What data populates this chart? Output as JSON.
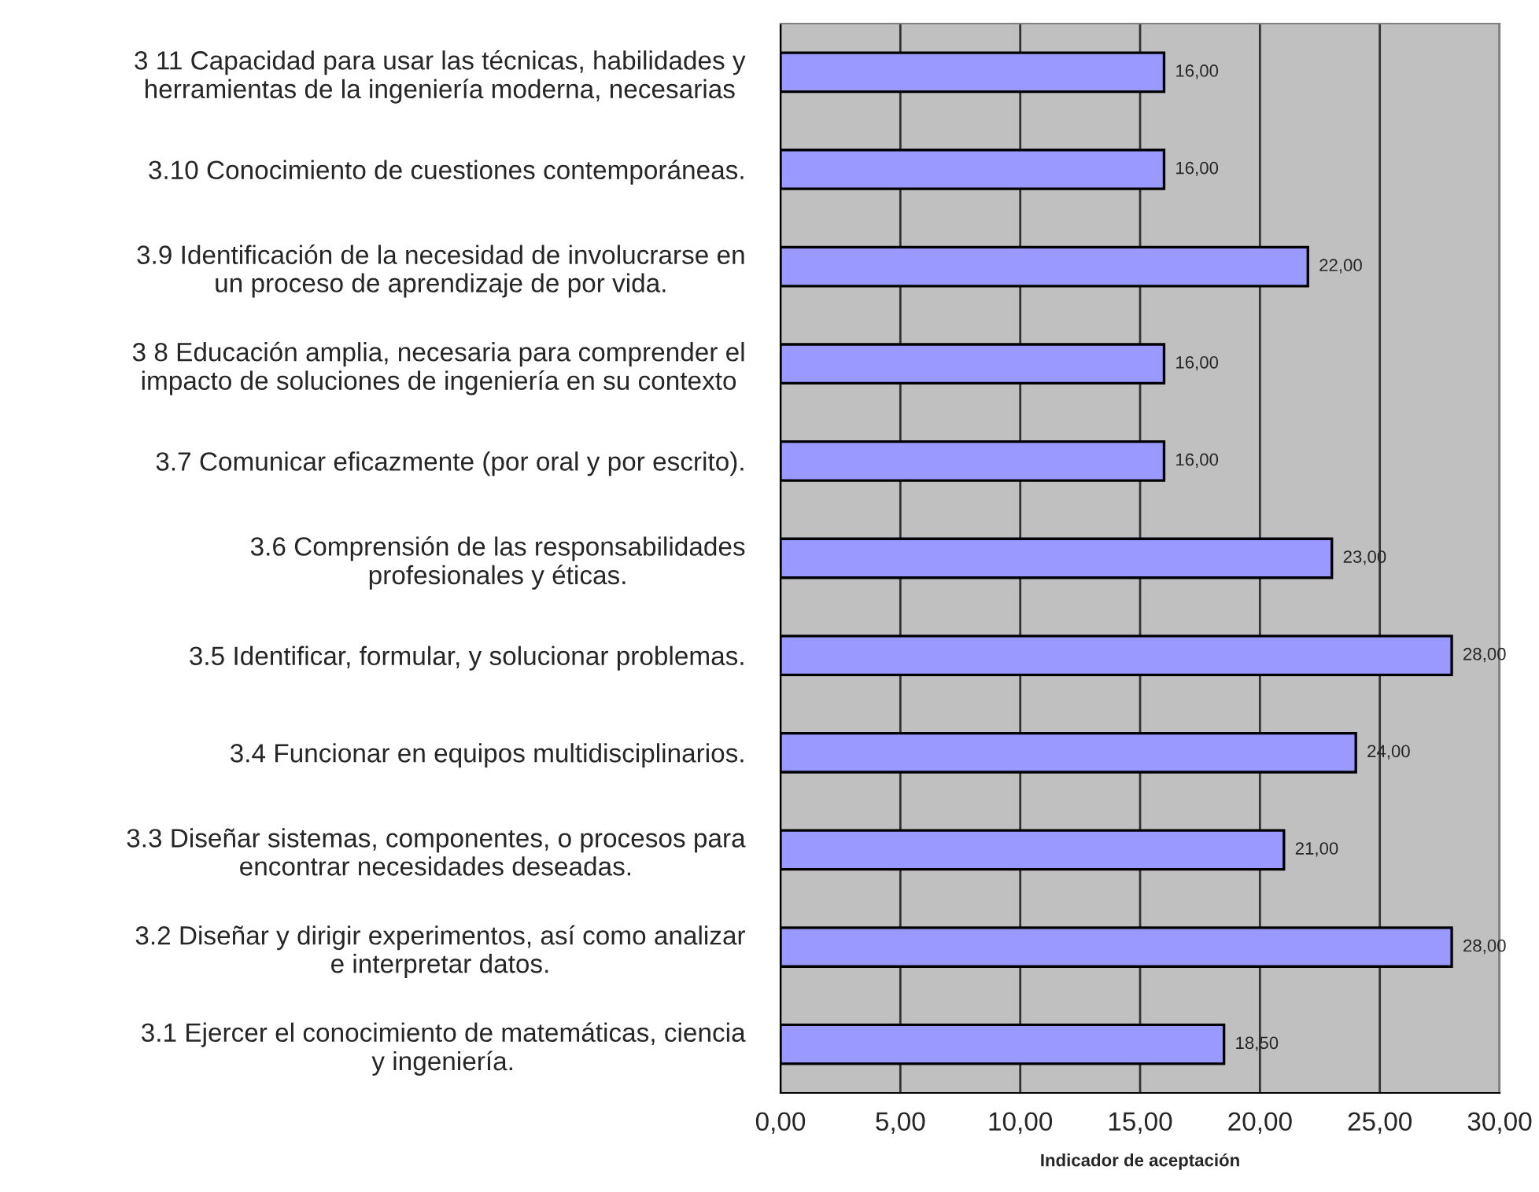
{
  "chart_data": {
    "type": "bar",
    "orientation": "horizontal",
    "xlabel": "Indicador de aceptación",
    "categories": [
      "3 11 Capacidad para usar las técnicas, habilidades y\nherramientas de la ingeniería moderna, necesarias",
      "3.10 Conocimiento de cuestiones contemporáneas.",
      "3.9 Identificación de la necesidad de involucrarse en\nun proceso de aprendizaje de por vida.",
      "3 8 Educación amplia, necesaria para comprender el\nimpacto de soluciones de ingeniería en su contexto",
      "3.7 Comunicar eficazmente (por oral y por escrito).",
      "3.6 Comprensión de las responsabilidades\nprofesionales y éticas.",
      "3.5 Identificar, formular, y solucionar problemas.",
      "3.4 Funcionar en equipos multidisciplinarios.",
      "3.3 Diseñar sistemas, componentes, o procesos para\nencontrar necesidades deseadas.",
      "3.2 Diseñar y dirigir experimentos, así como analizar\ne interpretar datos.",
      "3.1 Ejercer el conocimiento de matemáticas, ciencia\ny ingeniería."
    ],
    "values": [
      16,
      16,
      22,
      16,
      16,
      23,
      28,
      24,
      21,
      28,
      18.5
    ],
    "value_labels": [
      "16,00",
      "16,00",
      "22,00",
      "16,00",
      "16,00",
      "23,00",
      "28,00",
      "24,00",
      "21,00",
      "28,00",
      "18,50"
    ],
    "color": "#9999ff",
    "xlim": [
      0,
      30
    ],
    "xticks": [
      {
        "value": 0,
        "label": "0,00"
      },
      {
        "value": 5,
        "label": "5,00"
      },
      {
        "value": 10,
        "label": "10,00"
      },
      {
        "value": 15,
        "label": "15,00"
      },
      {
        "value": 20,
        "label": "20,00"
      },
      {
        "value": 25,
        "label": "25,00"
      },
      {
        "value": 30,
        "label": "30,00"
      }
    ],
    "grid": "x"
  }
}
